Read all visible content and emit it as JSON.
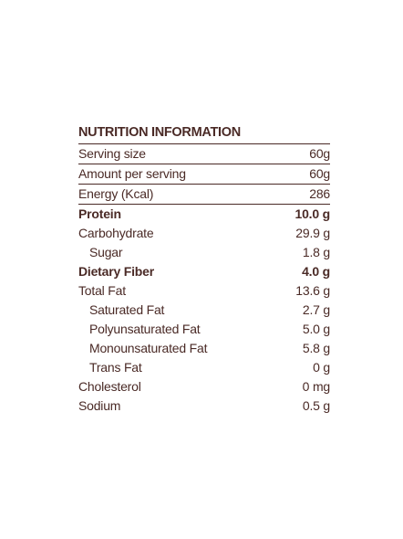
{
  "title": "NUTRITION INFORMATION",
  "table": {
    "rows": [
      [
        "Serving size",
        "60g"
      ],
      [
        "Amount per serving",
        "60g"
      ],
      [
        "Energy (Kcal)",
        "286"
      ],
      [
        "Protein",
        "10.0 g"
      ],
      [
        "Carbohydrate",
        "29.9 g"
      ],
      [
        "Sugar",
        "1.8 g"
      ],
      [
        "Dietary Fiber",
        "4.0 g"
      ],
      [
        "Total Fat",
        "13.6 g"
      ],
      [
        "Saturated Fat",
        "2.7 g"
      ],
      [
        "Polyunsaturated Fat",
        "5.0 g"
      ],
      [
        "Monounsaturated Fat",
        "5.8 g"
      ],
      [
        "Trans Fat",
        "0 g"
      ],
      [
        "Cholesterol",
        "0 mg"
      ],
      [
        "Sodium",
        "0.5 g"
      ]
    ]
  }
}
